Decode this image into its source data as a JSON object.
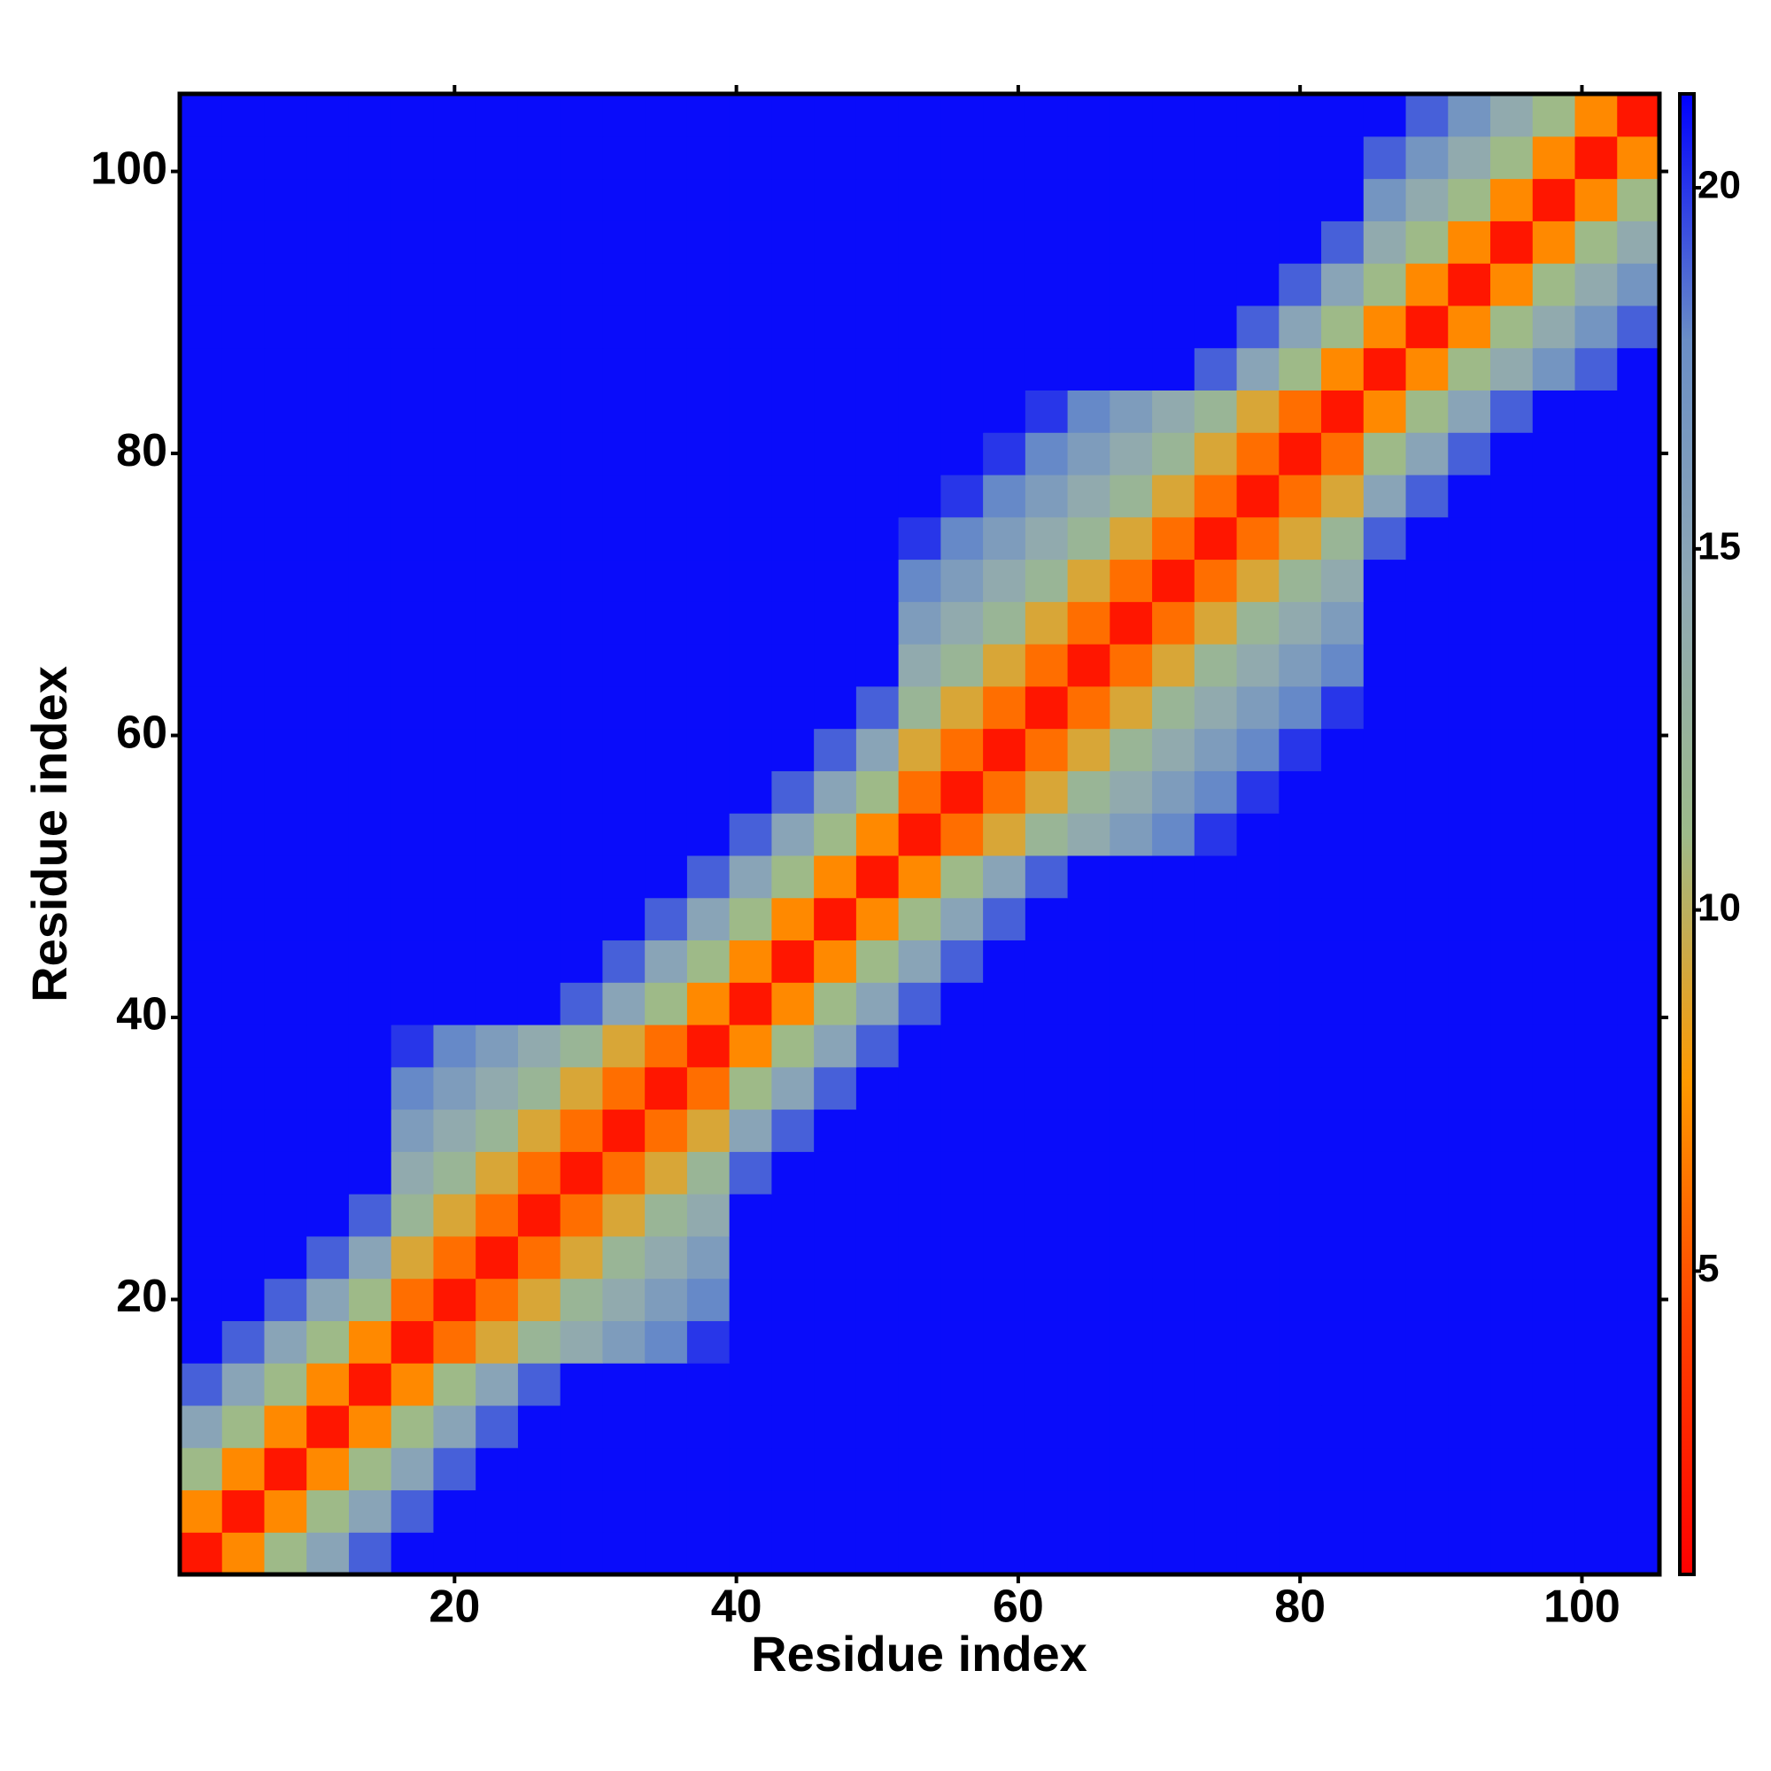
{
  "chart_data": {
    "type": "heatmap",
    "xlabel": "Residue index",
    "ylabel": "Residue index",
    "x": [
      2,
      5,
      8,
      11,
      14,
      17,
      20,
      23,
      26,
      29,
      32,
      35,
      38,
      41,
      44,
      47,
      50,
      53,
      56,
      59,
      62,
      65,
      68,
      71,
      74,
      77,
      80,
      83,
      86,
      89,
      92,
      95,
      98,
      101,
      104
    ],
    "y": [
      2,
      5,
      8,
      11,
      14,
      17,
      20,
      23,
      26,
      29,
      32,
      35,
      38,
      41,
      44,
      47,
      50,
      53,
      56,
      59,
      62,
      65,
      68,
      71,
      74,
      77,
      80,
      83,
      86,
      89,
      92,
      95,
      98,
      101,
      104
    ],
    "xlim": [
      0.5,
      105.5
    ],
    "ylim": [
      0.5,
      105.5
    ],
    "xticks": [
      20,
      40,
      60,
      80,
      100
    ],
    "yticks": [
      20,
      40,
      60,
      80,
      100
    ],
    "zlim": [
      0.8,
      21.3
    ],
    "zticks": [
      5,
      10,
      15,
      20
    ],
    "colorscale": [
      "#ff0000",
      "#ff4000",
      "#ff9900",
      "#9dba8a",
      "#8fa8b4",
      "#6a8ec6",
      "#0000ff"
    ],
    "z": [
      [
        2,
        7,
        11,
        15,
        19,
        21,
        21,
        21,
        21,
        21,
        21,
        21,
        21,
        21,
        21,
        21,
        21,
        21,
        21,
        21,
        21,
        21,
        21,
        21,
        21,
        21,
        21,
        21,
        21,
        21,
        21,
        21,
        21,
        21,
        21
      ],
      [
        7,
        2,
        7,
        11,
        15,
        19,
        21,
        21,
        21,
        21,
        21,
        21,
        21,
        21,
        21,
        21,
        21,
        21,
        21,
        21,
        21,
        21,
        21,
        21,
        21,
        21,
        21,
        21,
        21,
        21,
        21,
        21,
        21,
        21,
        21
      ],
      [
        11,
        7,
        2,
        7,
        11,
        15,
        19,
        21,
        21,
        21,
        21,
        21,
        21,
        21,
        21,
        21,
        21,
        21,
        21,
        21,
        21,
        21,
        21,
        21,
        21,
        21,
        21,
        21,
        21,
        21,
        21,
        21,
        21,
        21,
        21
      ],
      [
        15,
        11,
        7,
        2,
        7,
        11,
        15,
        19,
        21,
        21,
        21,
        21,
        21,
        21,
        21,
        21,
        21,
        21,
        21,
        21,
        21,
        21,
        21,
        21,
        21,
        21,
        21,
        21,
        21,
        21,
        21,
        21,
        21,
        21,
        21
      ],
      [
        19,
        15,
        11,
        7,
        2,
        7,
        11,
        15,
        19,
        21,
        21,
        21,
        21,
        21,
        21,
        21,
        21,
        21,
        21,
        21,
        21,
        21,
        21,
        21,
        21,
        21,
        21,
        21,
        21,
        21,
        21,
        21,
        21,
        21,
        21
      ],
      [
        21,
        19,
        15,
        11,
        7,
        2,
        6,
        9,
        12,
        14,
        16,
        18,
        20,
        21,
        21,
        21,
        21,
        21,
        21,
        21,
        21,
        21,
        21,
        21,
        21,
        21,
        21,
        21,
        21,
        21,
        21,
        21,
        21,
        21,
        21
      ],
      [
        21,
        21,
        19,
        15,
        11,
        6,
        2,
        6,
        9,
        12,
        14,
        16,
        18,
        21,
        21,
        21,
        21,
        21,
        21,
        21,
        21,
        21,
        21,
        21,
        21,
        21,
        21,
        21,
        21,
        21,
        21,
        21,
        21,
        21,
        21
      ],
      [
        21,
        21,
        21,
        19,
        15,
        9,
        6,
        2,
        6,
        9,
        12,
        14,
        16,
        21,
        21,
        21,
        21,
        21,
        21,
        21,
        21,
        21,
        21,
        21,
        21,
        21,
        21,
        21,
        21,
        21,
        21,
        21,
        21,
        21,
        21
      ],
      [
        21,
        21,
        21,
        21,
        19,
        12,
        9,
        6,
        2,
        6,
        9,
        12,
        14,
        21,
        21,
        21,
        21,
        21,
        21,
        21,
        21,
        21,
        21,
        21,
        21,
        21,
        21,
        21,
        21,
        21,
        21,
        21,
        21,
        21,
        21
      ],
      [
        21,
        21,
        21,
        21,
        21,
        14,
        12,
        9,
        6,
        2,
        6,
        9,
        12,
        19,
        21,
        21,
        21,
        21,
        21,
        21,
        21,
        21,
        21,
        21,
        21,
        21,
        21,
        21,
        21,
        21,
        21,
        21,
        21,
        21,
        21
      ],
      [
        21,
        21,
        21,
        21,
        21,
        16,
        14,
        12,
        9,
        6,
        2,
        6,
        9,
        15,
        19,
        21,
        21,
        21,
        21,
        21,
        21,
        21,
        21,
        21,
        21,
        21,
        21,
        21,
        21,
        21,
        21,
        21,
        21,
        21,
        21
      ],
      [
        21,
        21,
        21,
        21,
        21,
        18,
        16,
        14,
        12,
        9,
        6,
        2,
        6,
        11,
        15,
        19,
        21,
        21,
        21,
        21,
        21,
        21,
        21,
        21,
        21,
        21,
        21,
        21,
        21,
        21,
        21,
        21,
        21,
        21,
        21
      ],
      [
        21,
        21,
        21,
        21,
        21,
        20,
        18,
        16,
        14,
        12,
        9,
        6,
        2,
        7,
        11,
        15,
        19,
        21,
        21,
        21,
        21,
        21,
        21,
        21,
        21,
        21,
        21,
        21,
        21,
        21,
        21,
        21,
        21,
        21,
        21
      ],
      [
        21,
        21,
        21,
        21,
        21,
        21,
        21,
        21,
        21,
        19,
        15,
        11,
        7,
        2,
        7,
        11,
        15,
        19,
        21,
        21,
        21,
        21,
        21,
        21,
        21,
        21,
        21,
        21,
        21,
        21,
        21,
        21,
        21,
        21,
        21
      ],
      [
        21,
        21,
        21,
        21,
        21,
        21,
        21,
        21,
        21,
        21,
        19,
        15,
        11,
        7,
        2,
        7,
        11,
        15,
        19,
        21,
        21,
        21,
        21,
        21,
        21,
        21,
        21,
        21,
        21,
        21,
        21,
        21,
        21,
        21,
        21
      ],
      [
        21,
        21,
        21,
        21,
        21,
        21,
        21,
        21,
        21,
        21,
        21,
        19,
        15,
        11,
        7,
        2,
        7,
        11,
        15,
        19,
        21,
        21,
        21,
        21,
        21,
        21,
        21,
        21,
        21,
        21,
        21,
        21,
        21,
        21,
        21
      ],
      [
        21,
        21,
        21,
        21,
        21,
        21,
        21,
        21,
        21,
        21,
        21,
        21,
        19,
        15,
        11,
        7,
        2,
        7,
        11,
        15,
        19,
        21,
        21,
        21,
        21,
        21,
        21,
        21,
        21,
        21,
        21,
        21,
        21,
        21,
        21
      ],
      [
        21,
        21,
        21,
        21,
        21,
        21,
        21,
        21,
        21,
        21,
        21,
        21,
        21,
        19,
        15,
        11,
        7,
        2,
        6,
        9,
        12,
        14,
        16,
        18,
        20,
        21,
        21,
        21,
        21,
        21,
        21,
        21,
        21,
        21,
        21
      ],
      [
        21,
        21,
        21,
        21,
        21,
        21,
        21,
        21,
        21,
        21,
        21,
        21,
        21,
        21,
        19,
        15,
        11,
        6,
        2,
        6,
        9,
        12,
        14,
        16,
        18,
        20,
        21,
        21,
        21,
        21,
        21,
        21,
        21,
        21,
        21
      ],
      [
        21,
        21,
        21,
        21,
        21,
        21,
        21,
        21,
        21,
        21,
        21,
        21,
        21,
        21,
        21,
        19,
        15,
        9,
        6,
        2,
        6,
        9,
        12,
        14,
        16,
        18,
        20,
        21,
        21,
        21,
        21,
        21,
        21,
        21,
        21
      ],
      [
        21,
        21,
        21,
        21,
        21,
        21,
        21,
        21,
        21,
        21,
        21,
        21,
        21,
        21,
        21,
        21,
        19,
        12,
        9,
        6,
        2,
        6,
        9,
        12,
        14,
        16,
        18,
        20,
        21,
        21,
        21,
        21,
        21,
        21,
        21
      ],
      [
        21,
        21,
        21,
        21,
        21,
        21,
        21,
        21,
        21,
        21,
        21,
        21,
        21,
        21,
        21,
        21,
        21,
        14,
        12,
        9,
        6,
        2,
        6,
        9,
        12,
        14,
        16,
        18,
        21,
        21,
        21,
        21,
        21,
        21,
        21
      ],
      [
        21,
        21,
        21,
        21,
        21,
        21,
        21,
        21,
        21,
        21,
        21,
        21,
        21,
        21,
        21,
        21,
        21,
        16,
        14,
        12,
        9,
        6,
        2,
        6,
        9,
        12,
        14,
        16,
        21,
        21,
        21,
        21,
        21,
        21,
        21
      ],
      [
        21,
        21,
        21,
        21,
        21,
        21,
        21,
        21,
        21,
        21,
        21,
        21,
        21,
        21,
        21,
        21,
        21,
        18,
        16,
        14,
        12,
        9,
        6,
        2,
        6,
        9,
        12,
        14,
        21,
        21,
        21,
        21,
        21,
        21,
        21
      ],
      [
        21,
        21,
        21,
        21,
        21,
        21,
        21,
        21,
        21,
        21,
        21,
        21,
        21,
        21,
        21,
        21,
        21,
        20,
        18,
        16,
        14,
        12,
        9,
        6,
        2,
        6,
        9,
        12,
        19,
        21,
        21,
        21,
        21,
        21,
        21
      ],
      [
        21,
        21,
        21,
        21,
        21,
        21,
        21,
        21,
        21,
        21,
        21,
        21,
        21,
        21,
        21,
        21,
        21,
        21,
        20,
        18,
        16,
        14,
        12,
        9,
        6,
        2,
        6,
        9,
        15,
        19,
        21,
        21,
        21,
        21,
        21
      ],
      [
        21,
        21,
        21,
        21,
        21,
        21,
        21,
        21,
        21,
        21,
        21,
        21,
        21,
        21,
        21,
        21,
        21,
        21,
        21,
        20,
        18,
        16,
        14,
        12,
        9,
        6,
        2,
        6,
        11,
        15,
        19,
        21,
        21,
        21,
        21
      ],
      [
        21,
        21,
        21,
        21,
        21,
        21,
        21,
        21,
        21,
        21,
        21,
        21,
        21,
        21,
        21,
        21,
        21,
        21,
        21,
        21,
        20,
        18,
        16,
        14,
        12,
        9,
        6,
        2,
        7,
        11,
        15,
        19,
        21,
        21,
        21
      ],
      [
        21,
        21,
        21,
        21,
        21,
        21,
        21,
        21,
        21,
        21,
        21,
        21,
        21,
        21,
        21,
        21,
        21,
        21,
        21,
        21,
        21,
        21,
        21,
        21,
        19,
        15,
        11,
        7,
        2,
        7,
        11,
        14,
        17,
        19,
        21
      ],
      [
        21,
        21,
        21,
        21,
        21,
        21,
        21,
        21,
        21,
        21,
        21,
        21,
        21,
        21,
        21,
        21,
        21,
        21,
        21,
        21,
        21,
        21,
        21,
        21,
        21,
        19,
        15,
        11,
        7,
        2,
        7,
        11,
        14,
        17,
        19
      ],
      [
        21,
        21,
        21,
        21,
        21,
        21,
        21,
        21,
        21,
        21,
        21,
        21,
        21,
        21,
        21,
        21,
        21,
        21,
        21,
        21,
        21,
        21,
        21,
        21,
        21,
        21,
        19,
        15,
        11,
        7,
        2,
        7,
        11,
        14,
        17
      ],
      [
        21,
        21,
        21,
        21,
        21,
        21,
        21,
        21,
        21,
        21,
        21,
        21,
        21,
        21,
        21,
        21,
        21,
        21,
        21,
        21,
        21,
        21,
        21,
        21,
        21,
        21,
        21,
        19,
        14,
        11,
        7,
        2,
        7,
        11,
        14
      ],
      [
        21,
        21,
        21,
        21,
        21,
        21,
        21,
        21,
        21,
        21,
        21,
        21,
        21,
        21,
        21,
        21,
        21,
        21,
        21,
        21,
        21,
        21,
        21,
        21,
        21,
        21,
        21,
        21,
        17,
        14,
        11,
        7,
        2,
        7,
        11
      ],
      [
        21,
        21,
        21,
        21,
        21,
        21,
        21,
        21,
        21,
        21,
        21,
        21,
        21,
        21,
        21,
        21,
        21,
        21,
        21,
        21,
        21,
        21,
        21,
        21,
        21,
        21,
        21,
        21,
        19,
        17,
        14,
        11,
        7,
        2,
        7
      ],
      [
        21,
        21,
        21,
        21,
        21,
        21,
        21,
        21,
        21,
        21,
        21,
        21,
        21,
        21,
        21,
        21,
        21,
        21,
        21,
        21,
        21,
        21,
        21,
        21,
        21,
        21,
        21,
        21,
        21,
        19,
        17,
        14,
        11,
        7,
        2
      ]
    ]
  }
}
